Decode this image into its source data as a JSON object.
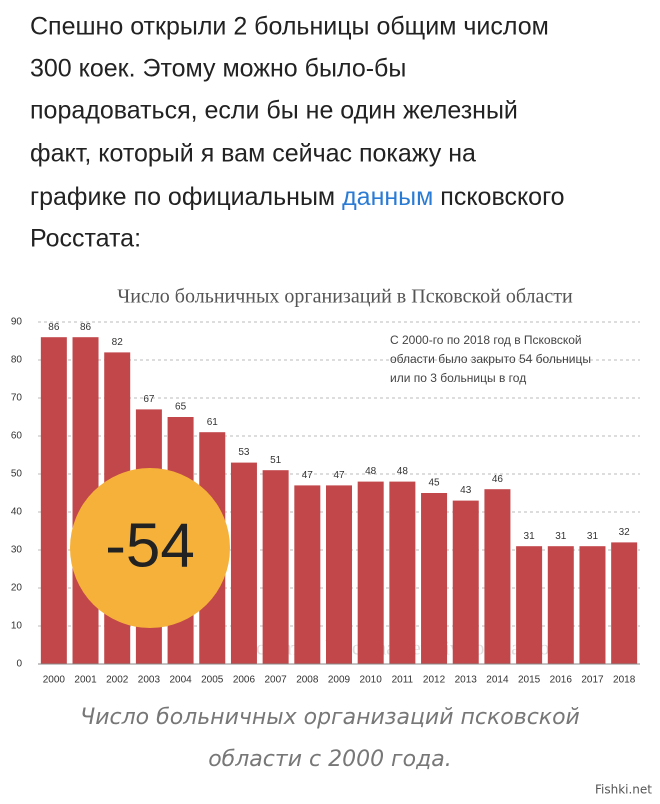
{
  "article": {
    "lines": [
      "Спешно открыли 2 больницы общим числом",
      "300 коек. Этому можно было-бы",
      "порадоваться, если бы не один железный",
      "факт, который я вам сейчас покажу на"
    ],
    "line5": {
      "before": "графике по официальным",
      "link": "данным",
      "after": "псковского"
    },
    "last_line": "Росстата:"
  },
  "chart_data": {
    "type": "bar",
    "title": "Число больничных организаций в Псковской области",
    "categories": [
      "2000",
      "2001",
      "2002",
      "2003",
      "2004",
      "2005",
      "2006",
      "2007",
      "2008",
      "2009",
      "2010",
      "2011",
      "2012",
      "2013",
      "2014",
      "2015",
      "2016",
      "2017",
      "2018"
    ],
    "values": [
      86,
      86,
      82,
      67,
      65,
      61,
      53,
      51,
      47,
      47,
      48,
      48,
      45,
      43,
      46,
      31,
      31,
      31,
      32
    ],
    "color": "#c1474a",
    "ylim": [
      0,
      90
    ],
    "yticks": [
      0,
      10,
      20,
      30,
      40,
      50,
      60,
      70,
      80,
      90
    ],
    "grid": true,
    "annotation": [
      "С 2000-го по 2018 год в Псковской",
      "области было закрыто 54 больницы",
      "или по 3 больницы в год"
    ],
    "badge": "-54",
    "watermark": "Росстат © burckina-new.livejournal.com"
  },
  "caption": [
    "Число больничных организаций псковской",
    "области с 2000 года."
  ],
  "footer": "Fishki.net"
}
